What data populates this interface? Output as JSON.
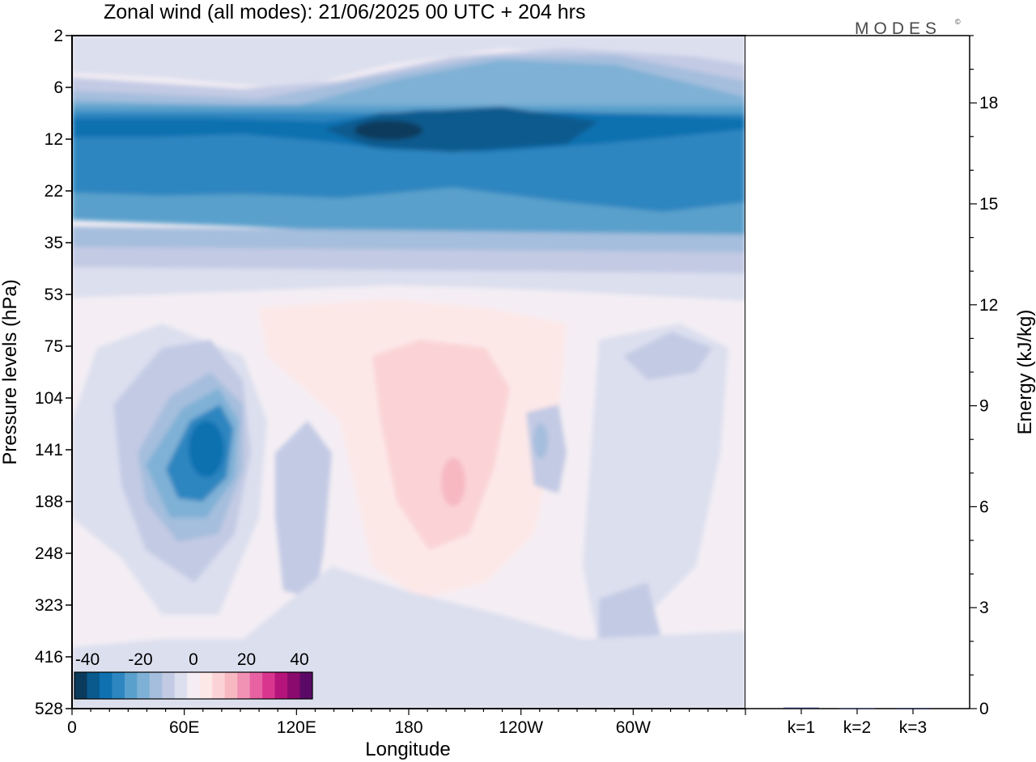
{
  "title": "Zonal wind (all modes):  21/06/2025  00 UTC  + 204 hrs",
  "brand": "MODES",
  "brand_mark": "©",
  "chart_data": [
    {
      "type": "heatmap",
      "description_fields": "zonal wind by longitude and pressure level",
      "xlabel": "Longitude",
      "ylabel": "Pressure levels (hPa)",
      "x_ticks": [
        "0",
        "60E",
        "120E",
        "180",
        "120W",
        "60W"
      ],
      "x_tick_degrees": [
        0,
        60,
        120,
        180,
        240,
        300
      ],
      "xlim": [
        0,
        360
      ],
      "y_ticks": [
        "2",
        "6",
        "12",
        "22",
        "35",
        "53",
        "75",
        "104",
        "141",
        "188",
        "248",
        "323",
        "416",
        "528"
      ],
      "colorbar": {
        "tick_labels": [
          "-40",
          "-20",
          "0",
          "20",
          "40"
        ],
        "levels": [
          -45,
          -40,
          -35,
          -30,
          -25,
          -20,
          -15,
          -10,
          -5,
          0,
          5,
          10,
          15,
          20,
          25,
          30,
          35,
          40,
          45
        ],
        "colors": [
          "#0a3b5c",
          "#0b5a8e",
          "#0f71b0",
          "#2d86c0",
          "#5aa0cc",
          "#7fb1d6",
          "#a5bedd",
          "#c3cae4",
          "#dcdfee",
          "#f4eef4",
          "#fde8e8",
          "#fbd3d6",
          "#f7b8c2",
          "#f192b4",
          "#e862a3",
          "#d9358f",
          "#b5157a",
          "#8a0a6e",
          "#5a0a66"
        ]
      },
      "features": [
        {
          "name": "strong easterly jet",
          "pressure_range_hPa": [
            8,
            30
          ],
          "peak_value": -40,
          "peak_longitude_deg": 160
        },
        {
          "name": "easterly core",
          "pressure_hPa": 141,
          "longitude_deg": 70,
          "peak_value": -30
        },
        {
          "name": "westerly region",
          "pressure_hPa": 150,
          "longitude_deg": 200,
          "peak_value": 15
        }
      ]
    },
    {
      "type": "bar",
      "categories": [
        "k=1",
        "k=2",
        "k=3"
      ],
      "values": [
        0.03,
        0.01,
        0.005
      ],
      "ylabel": "Energy (kJ/kg)",
      "ylim": [
        0,
        20
      ],
      "y_ticks": [
        "0",
        "3",
        "6",
        "9",
        "12",
        "15",
        "18"
      ],
      "y_tick_values": [
        0,
        3,
        6,
        9,
        12,
        15,
        18
      ]
    }
  ]
}
